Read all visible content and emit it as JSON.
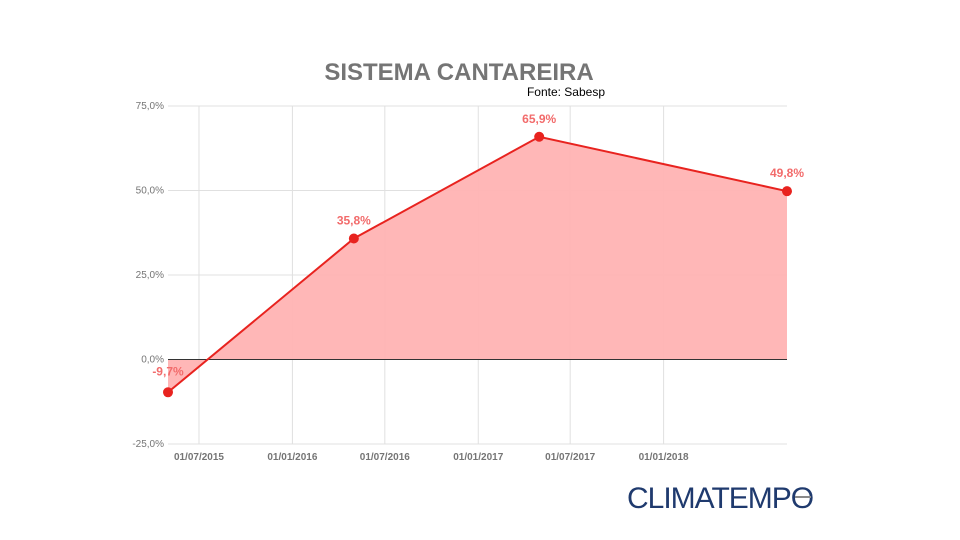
{
  "chart_data": {
    "type": "area",
    "title": "SISTEMA CANTAREIRA",
    "source": "Fonte: Sabesp",
    "xlabel": "",
    "ylabel": "",
    "ylim": [
      -25,
      75
    ],
    "y_ticks": [
      "75,0%",
      "50,0%",
      "25,0%",
      "0,0%",
      "-25,0%"
    ],
    "y_tick_values": [
      75,
      50,
      25,
      0,
      -25
    ],
    "x_range": [
      "2015-05-01",
      "2018-09-01"
    ],
    "x_ticks": [
      "01/07/2015",
      "01/01/2016",
      "01/07/2016",
      "01/01/2017",
      "01/07/2017",
      "01/01/2018"
    ],
    "x_tick_dates": [
      "2015-07-01",
      "2016-01-01",
      "2016-07-01",
      "2017-01-01",
      "2017-07-01",
      "2018-01-01"
    ],
    "grid": true,
    "series": [
      {
        "x": [
          "2015-05-01",
          "2016-05-01",
          "2017-05-01",
          "2018-09-01"
        ],
        "values": [
          -9.7,
          35.8,
          65.9,
          49.8
        ],
        "labels": [
          "-9,7%",
          "35,8%",
          "65,9%",
          "49,8%"
        ]
      }
    ],
    "colors": {
      "line": "#e8231f",
      "fill": "#ffb3b3",
      "label": "#f26b6b",
      "grid": "#e0e0e0",
      "zero_line": "#333333"
    }
  },
  "logo": {
    "text": "CLIMATEMPO",
    "color": "#1f3a6e"
  }
}
